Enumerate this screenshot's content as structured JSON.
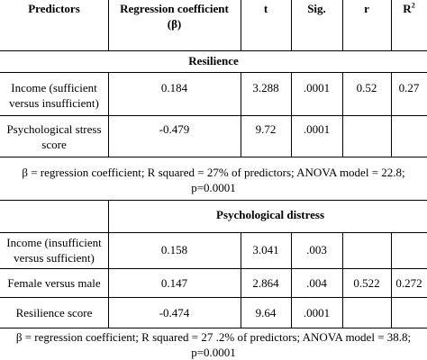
{
  "table": {
    "headers": {
      "predictors": "Predictors",
      "coef_line1": "Regression coefficient",
      "coef_line2": "(β)",
      "t": "t",
      "sig": "Sig.",
      "r": "r",
      "r2_base": "R",
      "r2_exp": "2"
    },
    "section1": {
      "title": "Resilience",
      "rows": [
        {
          "predictor_l1": "Income (sufficient",
          "predictor_l2": "versus insufficient)",
          "coef": "0.184",
          "t": "3.288",
          "sig": ".0001",
          "r": "0.52",
          "r2": "0.27"
        },
        {
          "predictor_l1": "Psychological stress",
          "predictor_l2": "score",
          "coef": "-0.479",
          "t": "9.72",
          "sig": ".0001",
          "r": "",
          "r2": ""
        }
      ],
      "note_l1": "β = regression coefficient; R squared = 27% of predictors; ANOVA model = 22.8;",
      "note_l2": "p=0.0001"
    },
    "section2": {
      "title": "Psychological distress",
      "rows": [
        {
          "predictor_l1": "Income (insufficient",
          "predictor_l2": "versus sufficient)",
          "coef": "0.158",
          "t": "3.041",
          "sig": ".003",
          "r": "",
          "r2": ""
        },
        {
          "predictor_l1": "Female versus male",
          "predictor_l2": "",
          "coef": "0.147",
          "t": "2.864",
          "sig": ".004",
          "r": "0.522",
          "r2": "0.272"
        },
        {
          "predictor_l1": "Resilience score",
          "predictor_l2": "",
          "coef": "-0.474",
          "t": "9.64",
          "sig": ".0001",
          "r": "",
          "r2": ""
        }
      ],
      "note_l1": "β = regression coefficient; R squared = 27 .2% of predictors; ANOVA model = 38.8;",
      "note_l2": "p=0.0001"
    }
  }
}
